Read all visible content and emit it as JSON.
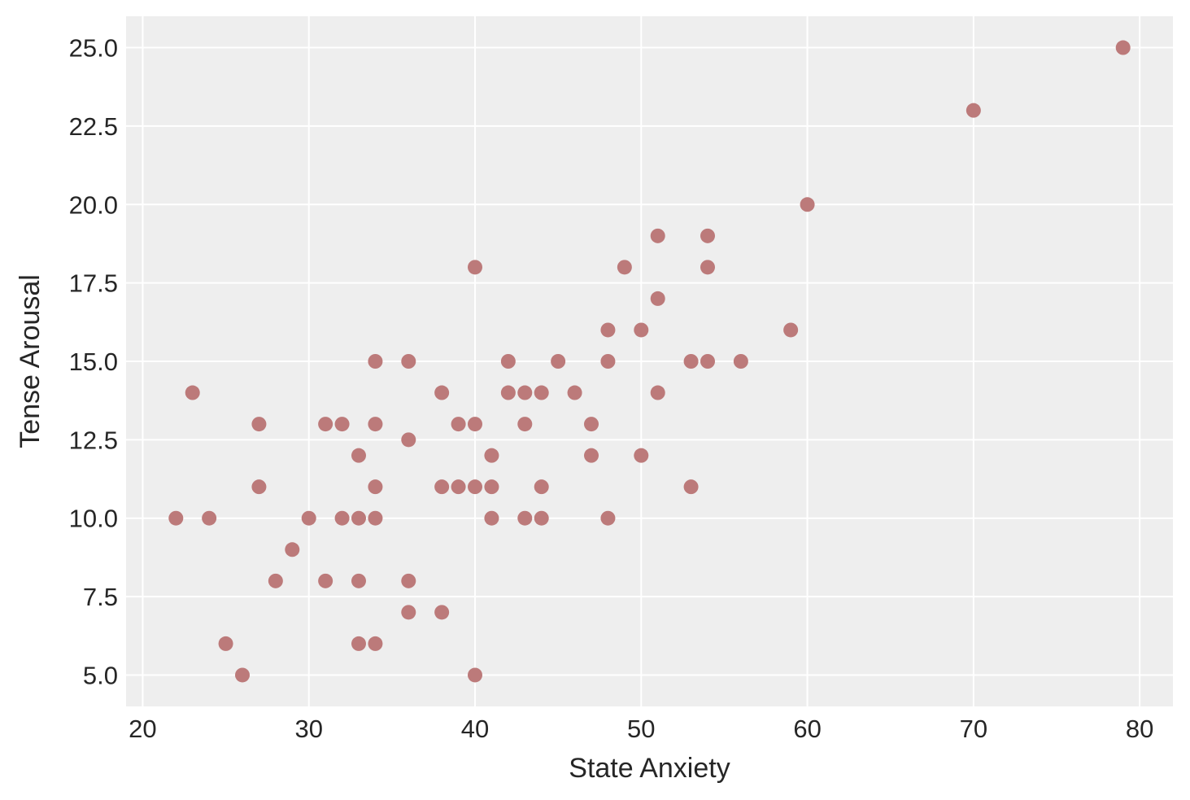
{
  "chart_data": {
    "type": "scatter",
    "title": "",
    "xlabel": "State Anxiety",
    "ylabel": "Tense Arousal",
    "xlim": [
      19,
      82
    ],
    "ylim": [
      4,
      26
    ],
    "xticks": [
      20,
      30,
      40,
      50,
      60,
      70,
      80
    ],
    "xtick_labels": [
      "20",
      "30",
      "40",
      "50",
      "60",
      "70",
      "80"
    ],
    "yticks": [
      5,
      7.5,
      10,
      12.5,
      15,
      17.5,
      20,
      22.5,
      25
    ],
    "ytick_labels": [
      "5.0",
      "7.5",
      "10.0",
      "12.5",
      "15.0",
      "17.5",
      "20.0",
      "22.5",
      "25.0"
    ],
    "grid": true,
    "background_color": "#eeeeee",
    "grid_color": "#ffffff",
    "marker_color": "#bc7a7a",
    "points": [
      {
        "x": 22,
        "y": 10
      },
      {
        "x": 23,
        "y": 14
      },
      {
        "x": 24,
        "y": 10
      },
      {
        "x": 25,
        "y": 6
      },
      {
        "x": 26,
        "y": 5
      },
      {
        "x": 27,
        "y": 13
      },
      {
        "x": 27,
        "y": 11
      },
      {
        "x": 28,
        "y": 8
      },
      {
        "x": 29,
        "y": 9
      },
      {
        "x": 30,
        "y": 10
      },
      {
        "x": 31,
        "y": 13
      },
      {
        "x": 31,
        "y": 8
      },
      {
        "x": 32,
        "y": 13
      },
      {
        "x": 32,
        "y": 10
      },
      {
        "x": 33,
        "y": 12
      },
      {
        "x": 33,
        "y": 10
      },
      {
        "x": 33,
        "y": 8
      },
      {
        "x": 33,
        "y": 6
      },
      {
        "x": 34,
        "y": 15
      },
      {
        "x": 34,
        "y": 13
      },
      {
        "x": 34,
        "y": 11
      },
      {
        "x": 34,
        "y": 10
      },
      {
        "x": 34,
        "y": 6
      },
      {
        "x": 36,
        "y": 15
      },
      {
        "x": 36,
        "y": 12.5
      },
      {
        "x": 36,
        "y": 8
      },
      {
        "x": 36,
        "y": 7
      },
      {
        "x": 38,
        "y": 14
      },
      {
        "x": 38,
        "y": 11
      },
      {
        "x": 38,
        "y": 7
      },
      {
        "x": 39,
        "y": 13
      },
      {
        "x": 39,
        "y": 11
      },
      {
        "x": 40,
        "y": 18
      },
      {
        "x": 40,
        "y": 13
      },
      {
        "x": 40,
        "y": 11
      },
      {
        "x": 40,
        "y": 5
      },
      {
        "x": 41,
        "y": 12
      },
      {
        "x": 41,
        "y": 11
      },
      {
        "x": 41,
        "y": 10
      },
      {
        "x": 42,
        "y": 15
      },
      {
        "x": 42,
        "y": 14
      },
      {
        "x": 43,
        "y": 14
      },
      {
        "x": 43,
        "y": 13
      },
      {
        "x": 43,
        "y": 10
      },
      {
        "x": 44,
        "y": 14
      },
      {
        "x": 44,
        "y": 11
      },
      {
        "x": 44,
        "y": 10
      },
      {
        "x": 45,
        "y": 15
      },
      {
        "x": 46,
        "y": 14
      },
      {
        "x": 47,
        "y": 13
      },
      {
        "x": 47,
        "y": 12
      },
      {
        "x": 48,
        "y": 16
      },
      {
        "x": 48,
        "y": 15
      },
      {
        "x": 48,
        "y": 10
      },
      {
        "x": 49,
        "y": 18
      },
      {
        "x": 50,
        "y": 16
      },
      {
        "x": 50,
        "y": 12
      },
      {
        "x": 51,
        "y": 19
      },
      {
        "x": 51,
        "y": 17
      },
      {
        "x": 51,
        "y": 14
      },
      {
        "x": 53,
        "y": 15
      },
      {
        "x": 53,
        "y": 11
      },
      {
        "x": 54,
        "y": 19
      },
      {
        "x": 54,
        "y": 18
      },
      {
        "x": 54,
        "y": 15
      },
      {
        "x": 56,
        "y": 15
      },
      {
        "x": 59,
        "y": 16
      },
      {
        "x": 60,
        "y": 20
      },
      {
        "x": 70,
        "y": 23
      },
      {
        "x": 79,
        "y": 25
      }
    ]
  }
}
